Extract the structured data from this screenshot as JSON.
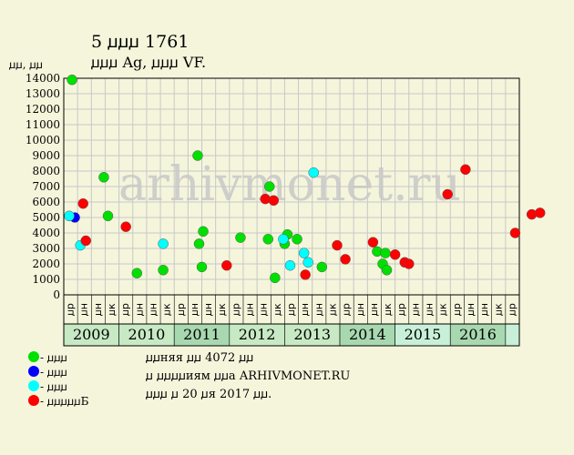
{
  "header": {
    "title": "5 ꙡꙡꙡ 1761",
    "subtitle": "ꙡꙡꙡ Ag, ꙡꙡꙡ VF.",
    "y_unit": "ꙡꙡ, ꙡꙡ"
  },
  "watermark": "arhivmonet.ru",
  "legend": [
    {
      "label": "- ꙡꙡꙡ",
      "color": "#00e000"
    },
    {
      "label": "- ꙡꙡꙡ",
      "color": "#0000ff"
    },
    {
      "label": "- ꙡꙡꙡ",
      "color": "#00ffff"
    },
    {
      "label": "- ꙡꙡꙡꙡꙡБ",
      "color": "#ff0000"
    }
  ],
  "notes": [
    "ꙡꙡняя ꙡꙡ 4072 ꙡꙡ",
    "ꙡ ꙡꙡꙡꙡиям ꙡꙡа ARHIVMONET.RU",
    "ꙡꙡꙡ ꙡ 20 ꙡя 2017 ꙡꙡ."
  ],
  "colors": {
    "background": "#f5f5dc",
    "green": "#00e000",
    "blue": "#0000ff",
    "cyan": "#00ffff",
    "red": "#ff0000",
    "grid": "#c8c8c8",
    "year_even": "#c7e9c4",
    "year_odd": "#a8d8b0",
    "year_light": "#c8f0d8"
  },
  "chart_data": {
    "type": "scatter",
    "ylim": [
      0,
      14000
    ],
    "yticks": [
      0,
      1000,
      2000,
      3000,
      4000,
      5000,
      6000,
      7000,
      8000,
      9000,
      10000,
      11000,
      12000,
      13000,
      14000
    ],
    "quarter_labels": [
      "ꙡр",
      "ꙡн",
      "ꙡн",
      "ꙡк"
    ],
    "years": [
      {
        "label": "2009",
        "bg": "#c7e9c4"
      },
      {
        "label": "2010",
        "bg": "#c7e9c4"
      },
      {
        "label": "2011",
        "bg": "#a8d8b0"
      },
      {
        "label": "2012",
        "bg": "#c7e9c4"
      },
      {
        "label": "2013",
        "bg": "#c7e9c4"
      },
      {
        "label": "2014",
        "bg": "#a8d8b0"
      },
      {
        "label": "2015",
        "bg": "#c8f0d8"
      },
      {
        "label": "2016",
        "bg": "#a8d8b0"
      },
      {
        "label": "",
        "bg": "#c8f0d8"
      }
    ],
    "n_columns": 33,
    "series": [
      {
        "color": "green",
        "points": [
          {
            "x": 0.1,
            "y": 13900
          },
          {
            "x": 2.4,
            "y": 7600
          },
          {
            "x": 2.7,
            "y": 5100
          },
          {
            "x": 4.8,
            "y": 1400
          },
          {
            "x": 6.7,
            "y": 1600
          },
          {
            "x": 9.2,
            "y": 9000
          },
          {
            "x": 9.3,
            "y": 3300
          },
          {
            "x": 9.5,
            "y": 1800
          },
          {
            "x": 9.6,
            "y": 4100
          },
          {
            "x": 12.3,
            "y": 3700
          },
          {
            "x": 14.3,
            "y": 3600
          },
          {
            "x": 14.4,
            "y": 7000
          },
          {
            "x": 14.8,
            "y": 1100
          },
          {
            "x": 15.5,
            "y": 3300
          },
          {
            "x": 15.7,
            "y": 3900
          },
          {
            "x": 16.4,
            "y": 3600
          },
          {
            "x": 18.2,
            "y": 1800
          },
          {
            "x": 22.2,
            "y": 2800
          },
          {
            "x": 22.6,
            "y": 2000
          },
          {
            "x": 22.8,
            "y": 2700
          },
          {
            "x": 22.9,
            "y": 1600
          }
        ]
      },
      {
        "color": "blue",
        "points": [
          {
            "x": 0.3,
            "y": 5000
          }
        ]
      },
      {
        "color": "cyan",
        "points": [
          {
            "x": -0.1,
            "y": 5100
          },
          {
            "x": 0.7,
            "y": 3200
          },
          {
            "x": 6.7,
            "y": 3300
          },
          {
            "x": 15.4,
            "y": 3600
          },
          {
            "x": 15.9,
            "y": 1900
          },
          {
            "x": 16.9,
            "y": 2700
          },
          {
            "x": 17.2,
            "y": 2100
          },
          {
            "x": 17.6,
            "y": 7900
          }
        ]
      },
      {
        "color": "red",
        "points": [
          {
            "x": 0.9,
            "y": 5900
          },
          {
            "x": 1.1,
            "y": 3500
          },
          {
            "x": 4.0,
            "y": 4400
          },
          {
            "x": 11.3,
            "y": 1900
          },
          {
            "x": 14.1,
            "y": 6200
          },
          {
            "x": 14.7,
            "y": 6100
          },
          {
            "x": 17.0,
            "y": 1300
          },
          {
            "x": 19.3,
            "y": 3200
          },
          {
            "x": 19.9,
            "y": 2300
          },
          {
            "x": 21.9,
            "y": 3400
          },
          {
            "x": 23.5,
            "y": 2600
          },
          {
            "x": 24.2,
            "y": 2100
          },
          {
            "x": 24.5,
            "y": 2000
          },
          {
            "x": 27.3,
            "y": 6500
          },
          {
            "x": 28.6,
            "y": 8100
          },
          {
            "x": 32.2,
            "y": 4000
          },
          {
            "x": 33.4,
            "y": 5200
          },
          {
            "x": 34.0,
            "y": 5300
          }
        ]
      }
    ]
  }
}
